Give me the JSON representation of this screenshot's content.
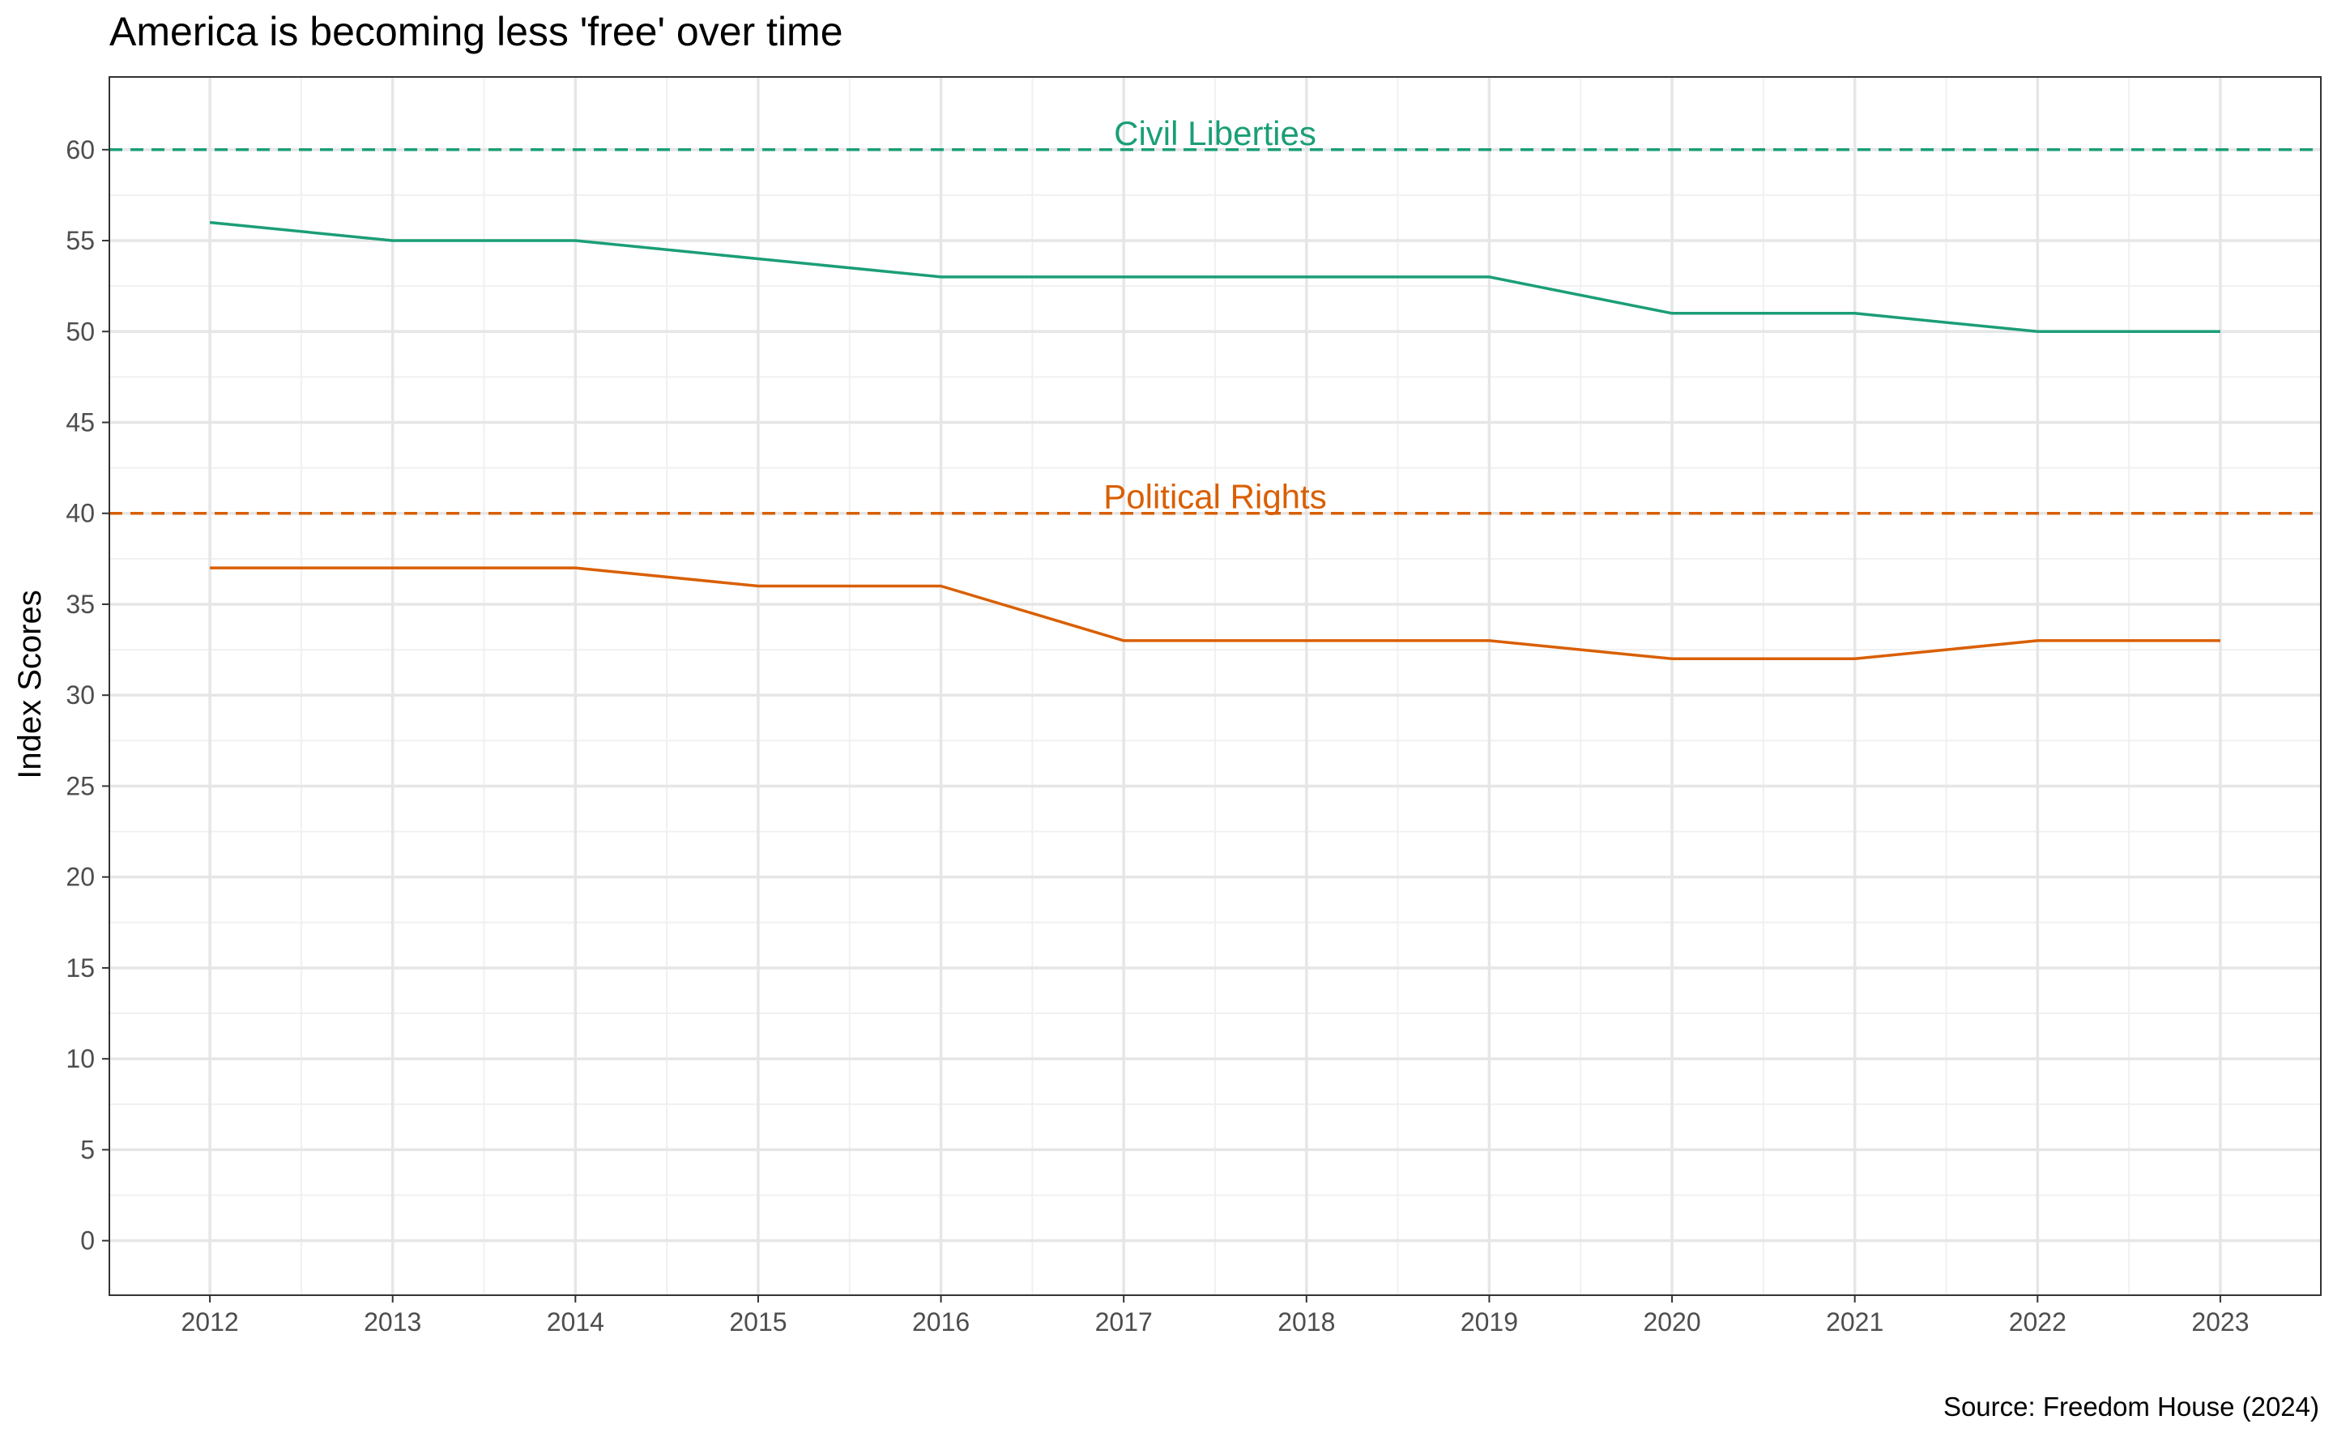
{
  "chart_data": {
    "type": "line",
    "title": "America is becoming less 'free' over time",
    "caption": "Source: Freedom House (2024)",
    "xlabel": "",
    "ylabel": "Index Scores",
    "x": [
      2012,
      2013,
      2014,
      2015,
      2016,
      2017,
      2018,
      2019,
      2020,
      2021,
      2022,
      2023
    ],
    "xlim": [
      2011.45,
      2023.55
    ],
    "ylim": [
      -3,
      64
    ],
    "yticks": [
      0,
      5,
      10,
      15,
      20,
      25,
      30,
      35,
      40,
      45,
      50,
      55,
      60
    ],
    "grid": true,
    "legend": "none",
    "series": [
      {
        "name": "Civil Liberties",
        "color": "#1b9e77",
        "values": [
          56,
          55,
          55,
          54,
          53,
          53,
          53,
          53,
          51,
          51,
          50,
          50
        ]
      },
      {
        "name": "Political Rights",
        "color": "#d95f02",
        "values": [
          37,
          37,
          37,
          36,
          36,
          33,
          33,
          33,
          32,
          32,
          33,
          33
        ]
      }
    ],
    "reference_lines": [
      {
        "label": "Civil Liberties",
        "y": 60,
        "color": "#1b9e77",
        "style": "dashed"
      },
      {
        "label": "Political Rights",
        "y": 40,
        "color": "#d95f02",
        "style": "dashed"
      }
    ]
  }
}
